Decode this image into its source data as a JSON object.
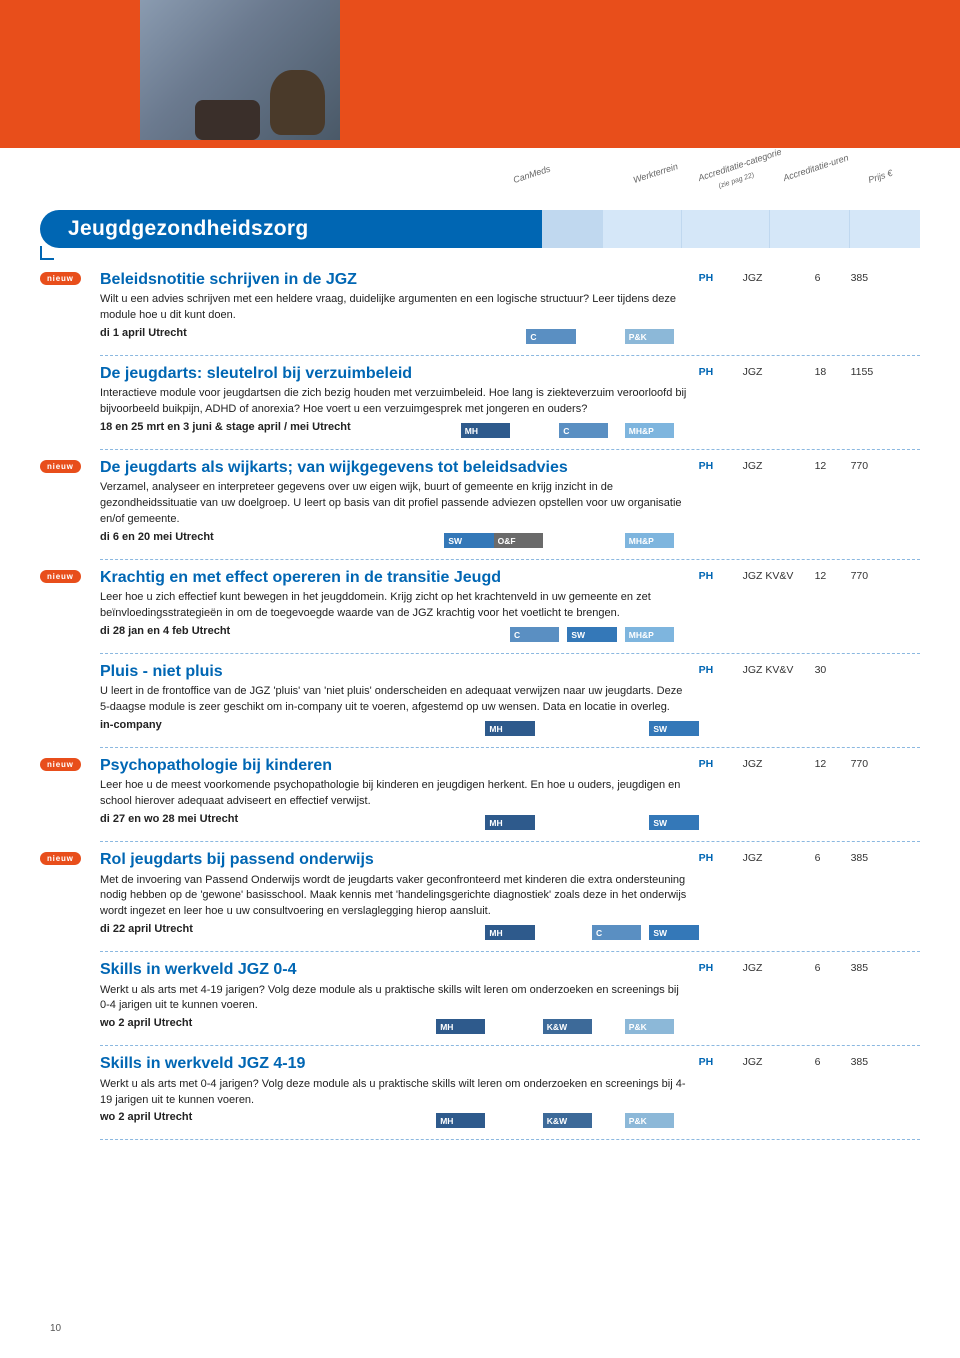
{
  "page_number": "10",
  "section_title": "Jeugdgezondheidszorg",
  "nieuw_label": "nieuw",
  "header_labels": {
    "canmeds": "CanMeds",
    "werkterrein": "Werkterrein",
    "accr_cat": "Accreditatie-categorie",
    "accr_cat_sub": "(zie pag 22)",
    "accr_uren": "Accreditatie-uren",
    "prijs": "Prijs €"
  },
  "tag_colors": {
    "MH": "#2e5a8c",
    "C": "#5a8fc2",
    "SW": "#3478b8",
    "O&F": "#6a6a6a",
    "K&W": "#3d6a99",
    "P&K": "#8cb8d8",
    "MH&P": "#7eb5de"
  },
  "courses": [
    {
      "nieuw": true,
      "title": "Beleidsnotitie schrijven in de JGZ",
      "desc": "Wilt u een advies schrijven met een heldere vraag, duidelijke argumenten en een logische structuur? Leer tijdens deze module hoe u dit kunt doen.",
      "date": "di 1 april Utrecht",
      "tags": [
        [
          "C",
          52
        ],
        [
          "P&K",
          64
        ]
      ],
      "ph": "PH",
      "wt": "JGZ",
      "hrs": "6",
      "price": "385"
    },
    {
      "nieuw": false,
      "title": "De jeugdarts: sleutelrol bij verzuimbeleid",
      "desc": "Interactieve module voor jeugdartsen die zich bezig houden met verzuimbeleid. Hoe lang is ziekte­verzuim veroorloofd bij bijvoorbeeld buikpijn, ADHD of anorexia? Hoe voert u een verzuimgesprek met jongeren en ouders?",
      "date": "18 en 25 mrt en 3 juni & stage april / mei Utrecht",
      "tags": [
        [
          "MH",
          44
        ],
        [
          "C",
          56
        ],
        [
          "MH&P",
          64
        ]
      ],
      "ph": "PH",
      "wt": "JGZ",
      "hrs": "18",
      "price": "1155"
    },
    {
      "nieuw": true,
      "title": "De jeugdarts als wijkarts; van wijkgegevens tot beleidsadvies",
      "desc": "Verzamel, analyseer en interpreteer gegevens over uw eigen wijk, buurt of gemeente en krijg inzicht in de gezondheidssituatie van uw doelgroep. U leert op basis van dit profiel passende adviezen opstellen voor uw organisatie en/of gemeente.",
      "date": "di 6 en 20 mei Utrecht",
      "tags": [
        [
          "SW",
          42
        ],
        [
          "O&F",
          48
        ],
        [
          "MH&P",
          64
        ]
      ],
      "ph": "PH",
      "wt": "JGZ",
      "hrs": "12",
      "price": "770"
    },
    {
      "nieuw": true,
      "title": "Krachtig en met effect opereren in de transitie Jeugd",
      "desc": "Leer hoe u zich effectief kunt bewegen in het jeugddomein. Krijg zicht op het krachtenveld in uw gemeente en zet beïnvloedingsstrategieën in om de toegevoegde waarde van de JGZ krachtig voor het voetlicht te brengen.",
      "date": "di 28 jan en 4 feb Utrecht",
      "tags": [
        [
          "C",
          50
        ],
        [
          "SW",
          57
        ],
        [
          "MH&P",
          64
        ]
      ],
      "ph": "PH",
      "wt": "JGZ KV&V",
      "hrs": "12",
      "price": "770"
    },
    {
      "nieuw": false,
      "title": "Pluis - niet pluis",
      "desc": "U leert in de frontoffice van de JGZ 'pluis' van 'niet pluis' onderscheiden en adequaat verwijzen naar uw jeugdarts. Deze 5-daagse module is zeer geschikt om in-company uit te voeren, afgestemd op uw wensen. Data en locatie in overleg.",
      "date": "in-company",
      "tags": [
        [
          "MH",
          47
        ],
        [
          "SW",
          67
        ]
      ],
      "ph": "PH",
      "wt": "JGZ KV&V",
      "hrs": "30",
      "price": ""
    },
    {
      "nieuw": true,
      "title": "Psychopathologie bij kinderen",
      "desc": "Leer hoe u de meest voorkomende psychopathologie bij kinderen en jeugdigen herkent. En hoe u ouders, jeugdigen en school hierover adequaat adviseert en effectief verwijst.",
      "date": "di 27 en wo 28 mei Utrecht",
      "tags": [
        [
          "MH",
          47
        ],
        [
          "SW",
          67
        ]
      ],
      "ph": "PH",
      "wt": "JGZ",
      "hrs": "12",
      "price": "770"
    },
    {
      "nieuw": true,
      "title": "Rol jeugdarts bij passend onderwijs",
      "desc": "Met de invoering van Passend Onderwijs wordt de jeugdarts vaker geconfronteerd met kinderen die extra ondersteuning nodig hebben op de 'gewone' basisschool. Maak kennis met 'handelingsgerichte diagnostiek' zoals deze in het onderwijs wordt ingezet en leer hoe u uw consultvoering en verslaglegging hierop aansluit.",
      "date": "di 22 april Utrecht",
      "tags": [
        [
          "MH",
          47
        ],
        [
          "C",
          60
        ],
        [
          "SW",
          67
        ]
      ],
      "ph": "PH",
      "wt": "JGZ",
      "hrs": "6",
      "price": "385"
    },
    {
      "nieuw": false,
      "title": "Skills in werkveld JGZ 0-4",
      "desc": "Werkt u als arts met 4-19 jarigen? Volg deze module als u praktische skills wilt leren om onderzoeken en screenings bij 0-4 jarigen uit te kunnen voeren.",
      "date": "wo 2 april Utrecht",
      "tags": [
        [
          "MH",
          41
        ],
        [
          "K&W",
          54
        ],
        [
          "P&K",
          64
        ]
      ],
      "ph": "PH",
      "wt": "JGZ",
      "hrs": "6",
      "price": "385"
    },
    {
      "nieuw": false,
      "title": "Skills in werkveld JGZ 4-19",
      "desc": "Werkt u als arts met 0-4 jarigen? Volg deze module als u praktische skills wilt leren om onderzoeken en screenings bij 4-19 jarigen uit te kunnen voeren.",
      "date": "wo 2 april Utrecht",
      "tags": [
        [
          "MH",
          41
        ],
        [
          "K&W",
          54
        ],
        [
          "P&K",
          64
        ]
      ],
      "ph": "PH",
      "wt": "JGZ",
      "hrs": "6",
      "price": "385"
    }
  ]
}
